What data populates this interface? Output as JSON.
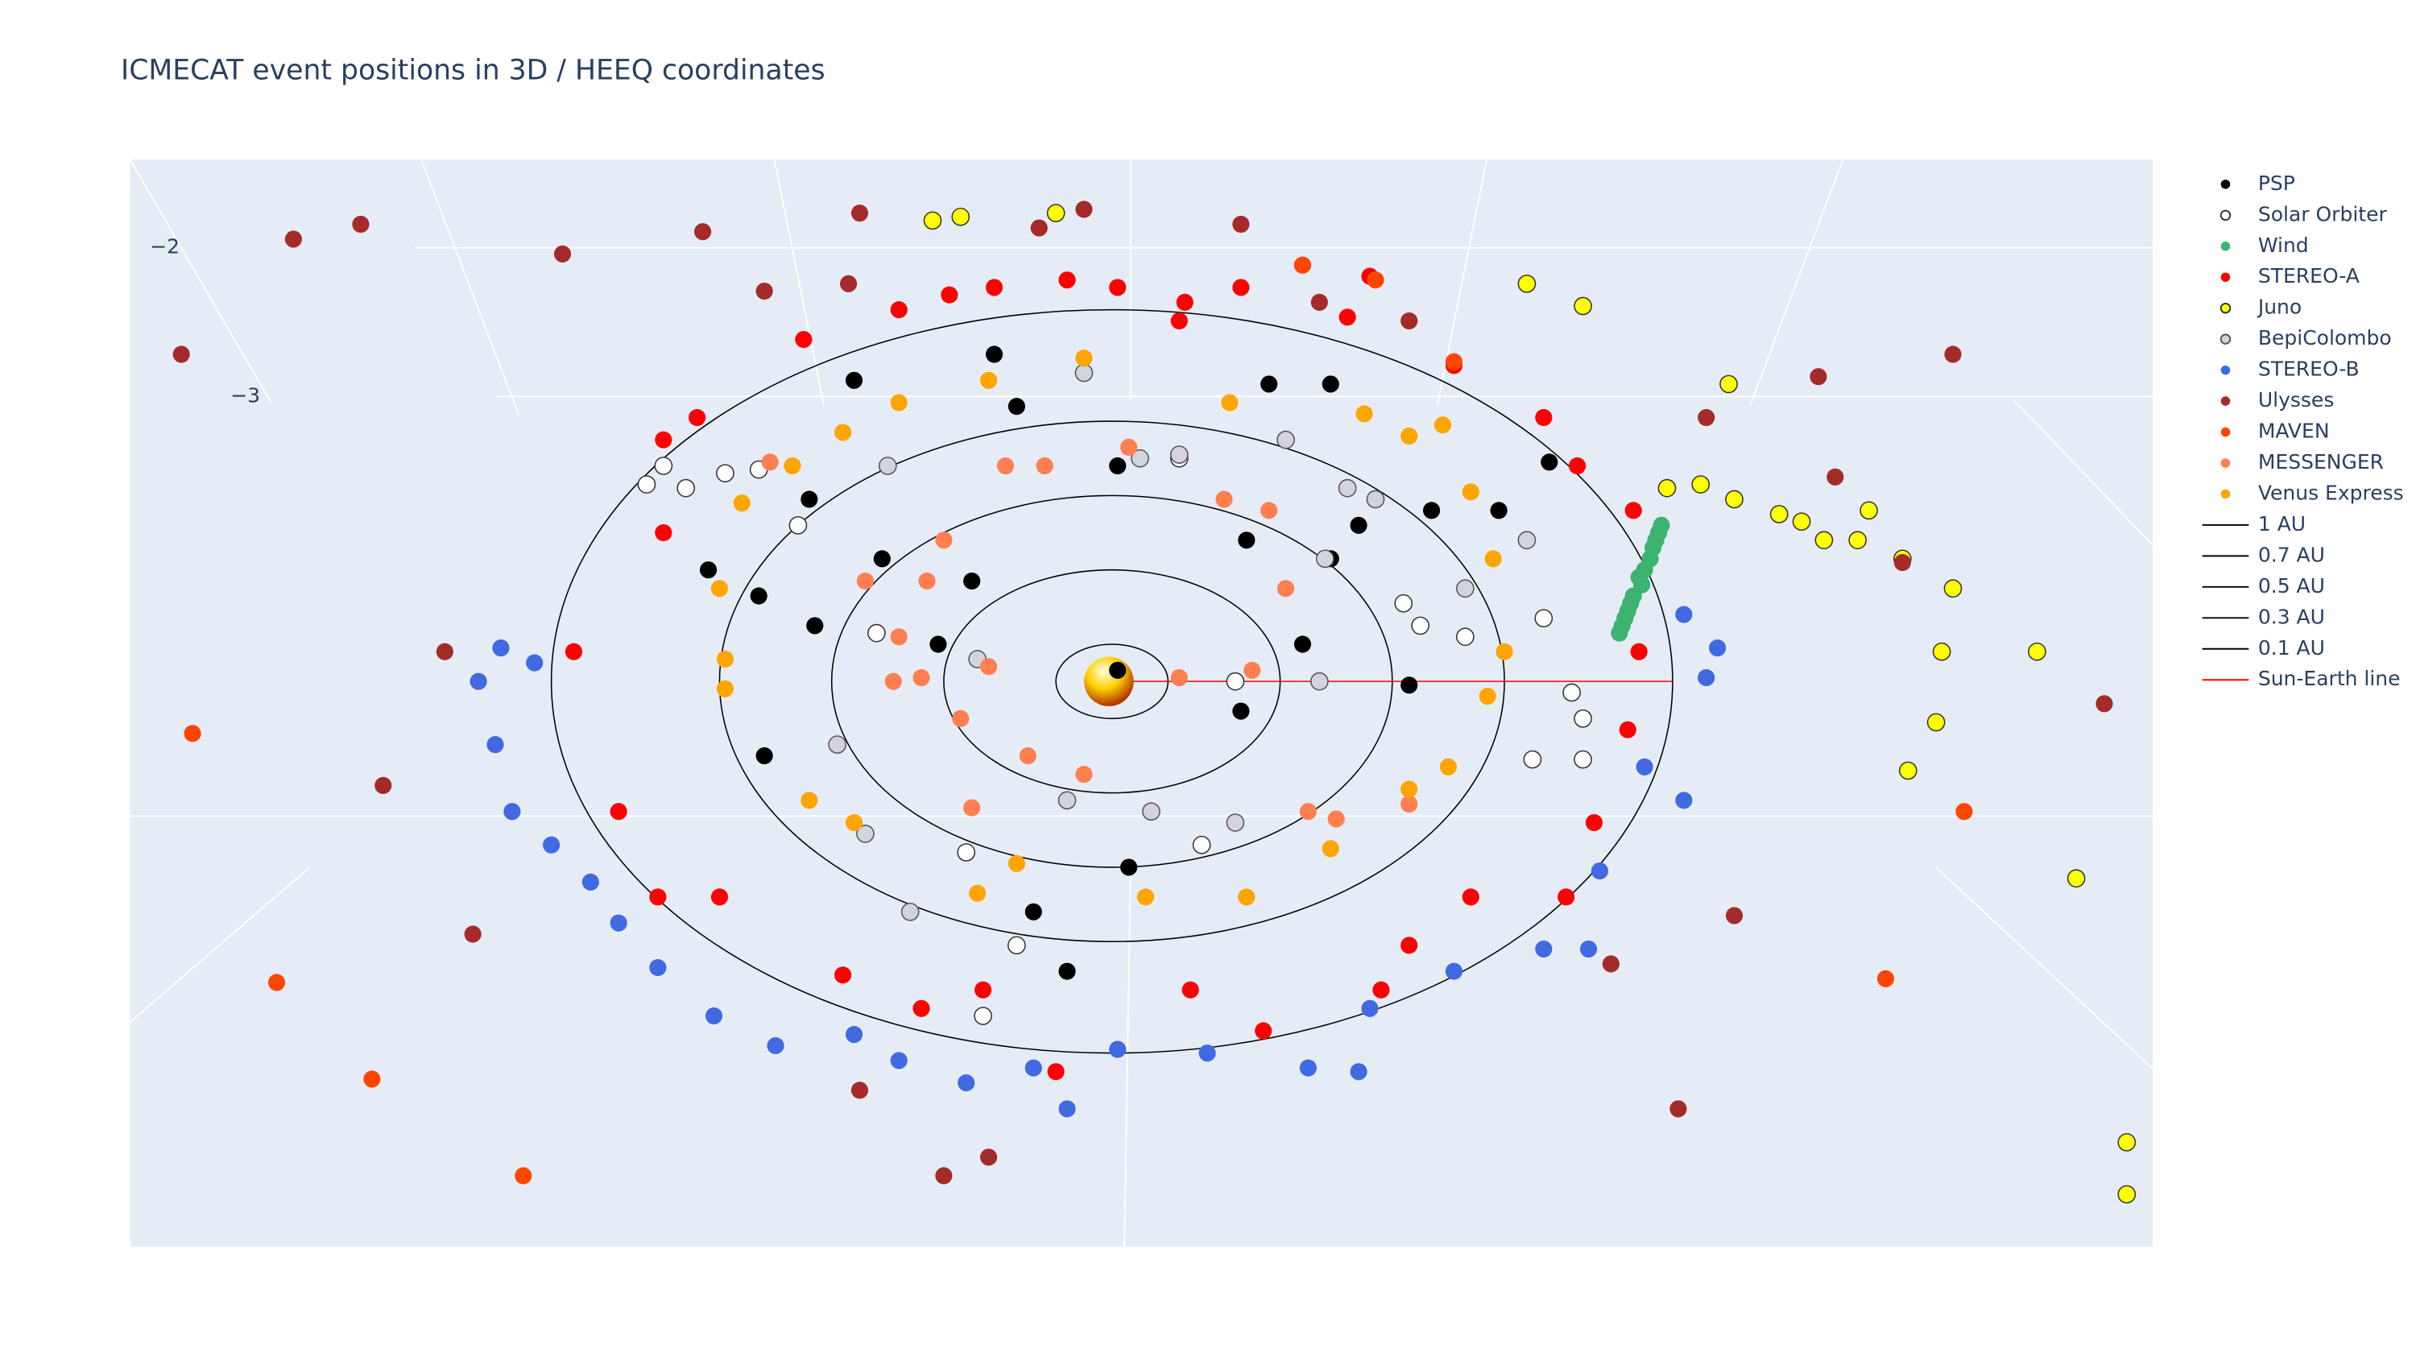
{
  "chart_data": {
    "type": "scatter3d",
    "title": "ICMECAT event positions in 3D / HEEQ coordinates",
    "zticks": [
      {
        "value": -2,
        "label": "−2"
      },
      {
        "value": -3,
        "label": "−3"
      }
    ],
    "series": [
      {
        "name": "PSP",
        "color": "#000000",
        "x": [
          -0.46,
          -0.21,
          0.28,
          0.39,
          -0.54,
          -0.72,
          -0.63,
          -0.53,
          -0.31,
          -0.25,
          0.24,
          0.39,
          0.57,
          0.69,
          0.01,
          0.23,
          0.03,
          -0.14,
          -0.08,
          -0.62,
          -0.41,
          -0.17,
          0.78,
          0.53,
          0.34,
          0.44,
          0.01
        ],
        "y": [
          0.81,
          0.88,
          0.8,
          0.8,
          0.49,
          0.3,
          0.23,
          0.15,
          0.1,
          0.27,
          0.38,
          0.33,
          0.46,
          0.46,
          0.03,
          -0.08,
          -0.5,
          -0.62,
          -0.78,
          -0.2,
          0.33,
          0.74,
          0.59,
          -0.01,
          0.1,
          0.42,
          0.58
        ]
      },
      {
        "name": "Solar Orbiter",
        "color": "#ffffff",
        "outline": "#333333",
        "x": [
          -0.8,
          -0.76,
          -0.83,
          -0.69,
          -0.63,
          0.82,
          0.84,
          0.75,
          0.84,
          0.77,
          -0.26,
          -0.23,
          -0.17,
          0.16,
          0.55,
          0.63,
          0.52,
          0.22,
          -0.42,
          -0.56,
          0.12
        ],
        "y": [
          0.58,
          0.52,
          0.53,
          0.56,
          0.57,
          -0.03,
          -0.1,
          -0.21,
          -0.21,
          0.17,
          -0.46,
          -0.9,
          -0.71,
          -0.44,
          0.15,
          0.12,
          0.21,
          0.0,
          0.13,
          0.42,
          0.6
        ]
      },
      {
        "name": "Wind",
        "color": "#3cb371",
        "x": [
          0.98,
          0.97,
          0.96,
          0.94,
          0.93,
          0.92,
          0.91,
          0.975,
          0.95,
          0.925,
          0.965,
          0.945,
          0.915,
          0.905
        ],
        "y": [
          0.42,
          0.38,
          0.33,
          0.28,
          0.23,
          0.19,
          0.15,
          0.4,
          0.3,
          0.21,
          0.36,
          0.26,
          0.17,
          0.13
        ]
      },
      {
        "name": "STEREO-A",
        "color": "#ff0000",
        "x": [
          -0.74,
          -0.55,
          -0.38,
          -0.21,
          -0.08,
          0.01,
          0.13,
          0.23,
          0.42,
          0.61,
          0.77,
          0.83,
          0.93,
          0.94,
          0.92,
          0.86,
          0.81,
          0.64,
          0.53,
          0.48,
          0.27,
          0.14,
          -0.1,
          -0.23,
          -0.34,
          -0.48,
          -0.7,
          -0.81,
          -0.88,
          -0.96,
          -0.8,
          -0.8,
          -0.29,
          0.12,
          0.34,
          0.46
        ],
        "y": [
          0.71,
          0.92,
          1.0,
          1.06,
          1.08,
          1.06,
          1.02,
          1.06,
          0.98,
          0.85,
          0.71,
          0.58,
          0.46,
          0.08,
          -0.13,
          -0.38,
          -0.58,
          -0.58,
          -0.71,
          -0.83,
          -0.94,
          -0.83,
          -1.05,
          -0.83,
          -0.88,
          -0.79,
          -0.58,
          -0.58,
          -0.35,
          0.08,
          0.4,
          0.65,
          1.04,
          0.97,
          1.12,
          1.09
        ]
      },
      {
        "name": "Juno",
        "color": "#ffff00",
        "outline": "#333333",
        "x": [
          -0.32,
          -0.27,
          -0.1,
          0.74,
          0.84,
          1.1,
          0.99,
          1.05,
          1.11,
          1.19,
          1.23,
          1.27,
          1.33,
          1.35,
          1.41,
          1.5,
          1.48,
          1.65,
          1.47,
          1.42,
          1.72,
          1.81,
          1.81
        ],
        "y": [
          1.24,
          1.25,
          1.26,
          1.07,
          1.01,
          0.8,
          0.52,
          0.53,
          0.49,
          0.45,
          0.43,
          0.38,
          0.38,
          0.46,
          0.33,
          0.25,
          0.08,
          0.08,
          -0.11,
          -0.24,
          -0.53,
          -1.24,
          -1.38
        ]
      },
      {
        "name": "BepiColombo",
        "color": "#d3d3de",
        "outline": "#555555",
        "x": [
          -0.05,
          0.05,
          0.12,
          0.31,
          0.42,
          0.47,
          0.38,
          -0.49,
          -0.44,
          -0.36,
          -0.08,
          0.07,
          0.22,
          0.37,
          0.63,
          0.74,
          -0.24,
          -0.4
        ],
        "y": [
          0.83,
          0.6,
          0.61,
          0.65,
          0.52,
          0.49,
          0.33,
          -0.17,
          -0.41,
          -0.62,
          -0.32,
          -0.35,
          -0.38,
          0.0,
          0.25,
          0.38,
          0.06,
          0.58
        ]
      },
      {
        "name": "STEREO-B",
        "color": "#4169e1",
        "x": [
          -1.09,
          -1.13,
          -1.1,
          -1.07,
          -1.0,
          -0.93,
          -0.88,
          -0.81,
          -0.71,
          -0.6,
          -0.46,
          -0.38,
          -0.26,
          -0.14,
          -0.08,
          0.01,
          0.17,
          0.35,
          0.44,
          0.46,
          0.61,
          0.77,
          0.85,
          0.87,
          0.95,
          1.02,
          1.06,
          1.08,
          1.02,
          -1.03
        ],
        "y": [
          0.09,
          0.0,
          -0.17,
          -0.35,
          -0.44,
          -0.54,
          -0.65,
          -0.77,
          -0.9,
          -0.98,
          -0.95,
          -1.02,
          -1.08,
          -1.04,
          -1.15,
          -0.99,
          -1.0,
          -1.04,
          -1.05,
          -0.88,
          -0.78,
          -0.72,
          -0.72,
          -0.51,
          -0.23,
          -0.32,
          0.01,
          0.09,
          0.18,
          0.05
        ]
      },
      {
        "name": "Ulysses",
        "color": "#a52a2a",
        "x": [
          -1.46,
          -1.34,
          -1.66,
          -0.98,
          -0.73,
          -0.45,
          -0.05,
          -0.13,
          0.23,
          0.37,
          1.06,
          1.26,
          1.5,
          1.29,
          1.41,
          1.77,
          1.11,
          1.01,
          0.89,
          -1.3,
          -1.14,
          -1.19,
          -0.45,
          -0.3,
          -0.22,
          -0.62,
          -0.47,
          0.53
        ],
        "y": [
          1.19,
          1.23,
          0.88,
          1.15,
          1.21,
          1.26,
          1.27,
          1.22,
          1.23,
          1.02,
          0.71,
          0.82,
          0.88,
          0.55,
          0.32,
          -0.06,
          -0.63,
          -1.15,
          -0.76,
          -0.28,
          -0.68,
          0.08,
          -1.1,
          -1.33,
          -1.28,
          1.05,
          1.07,
          0.97
        ]
      },
      {
        "name": "MAVEN",
        "color": "#ff4500",
        "x": [
          -1.64,
          -1.49,
          -1.32,
          -1.05,
          1.52,
          1.38,
          0.34,
          0.47,
          0.61
        ],
        "y": [
          -0.14,
          -0.81,
          -1.07,
          -1.33,
          -0.35,
          -0.8,
          1.12,
          1.08,
          0.86
        ]
      },
      {
        "name": "MESSENGER",
        "color": "#ff7f50",
        "x": [
          -0.3,
          -0.33,
          -0.38,
          -0.34,
          -0.27,
          -0.15,
          -0.05,
          0.12,
          0.25,
          0.31,
          0.28,
          0.2,
          0.03,
          -0.19,
          -0.44,
          -0.22,
          0.35,
          0.4,
          0.53,
          -0.25,
          -0.39,
          -0.12,
          -0.61
        ],
        "y": [
          0.38,
          0.27,
          0.12,
          0.01,
          -0.1,
          -0.2,
          -0.25,
          0.01,
          0.03,
          0.25,
          0.46,
          0.49,
          0.63,
          0.58,
          0.27,
          0.04,
          -0.35,
          -0.37,
          -0.33,
          -0.34,
          0.0,
          0.58,
          0.59
        ]
      },
      {
        "name": "Venus Express",
        "color": "#ffa500",
        "x": [
          -0.69,
          -0.7,
          -0.66,
          -0.57,
          -0.48,
          -0.38,
          -0.22,
          -0.05,
          0.21,
          0.45,
          0.53,
          0.64,
          0.68,
          0.7,
          0.67,
          0.6,
          0.53,
          0.39,
          0.24,
          0.06,
          -0.24,
          -0.17,
          -0.46,
          -0.54,
          -0.69,
          0.59
        ],
        "y": [
          0.06,
          0.25,
          0.48,
          0.58,
          0.67,
          0.75,
          0.81,
          0.87,
          0.75,
          0.72,
          0.66,
          0.51,
          0.33,
          0.08,
          -0.04,
          -0.23,
          -0.29,
          -0.45,
          -0.58,
          -0.58,
          -0.57,
          -0.49,
          -0.38,
          -0.32,
          -0.02,
          0.69
        ]
      }
    ],
    "orbits": [
      {
        "name": "1 AU",
        "r": 1,
        "color": "#000000"
      },
      {
        "name": "0.7 AU",
        "r": 0.7,
        "color": "#000000"
      },
      {
        "name": "0.5 AU",
        "r": 0.5,
        "color": "#000000"
      },
      {
        "name": "0.3 AU",
        "r": 0.3,
        "color": "#000000"
      },
      {
        "name": "0.1 AU",
        "r": 0.1,
        "color": "#000000"
      }
    ],
    "sun_earth_line": {
      "name": "Sun-Earth line",
      "color": "#ff0000",
      "x": [
        0,
        1
      ],
      "y": [
        0,
        0
      ]
    }
  }
}
